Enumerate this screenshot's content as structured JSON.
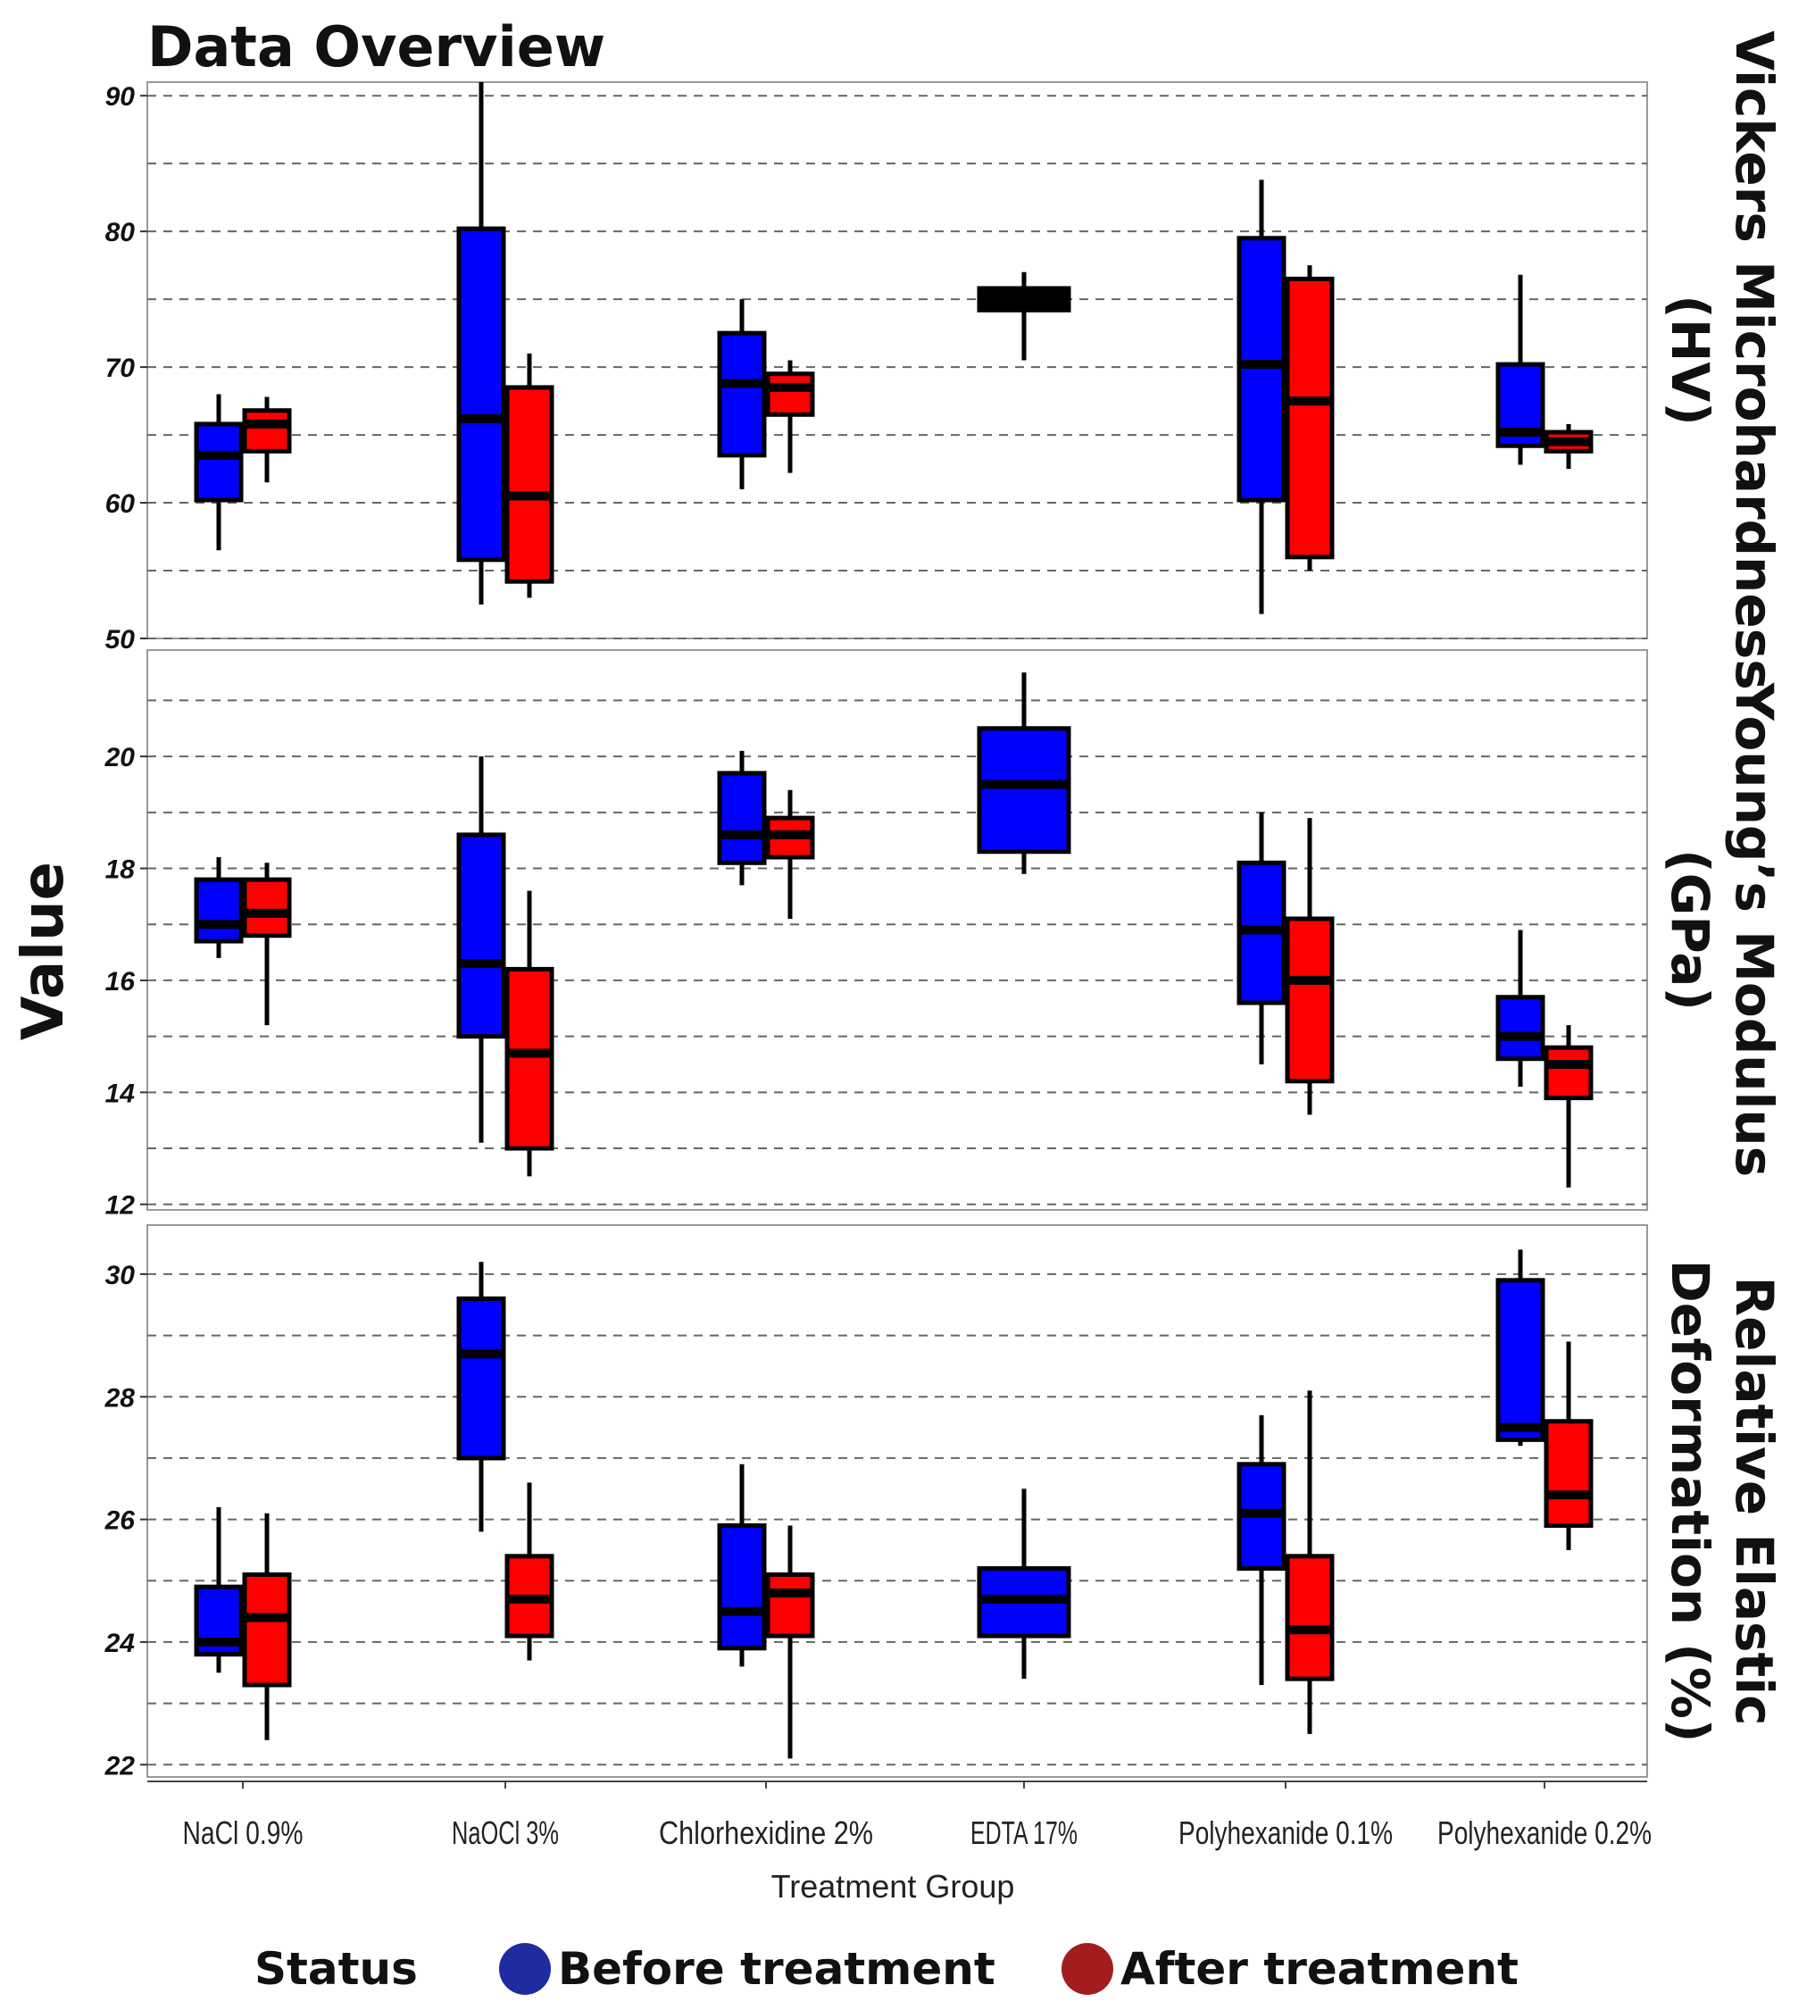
{
  "chart_data": {
    "type": "boxplot",
    "title": "Data Overview",
    "ylabel": "Value",
    "xlabel": "Treatment Group",
    "categories": [
      "NaCl 0.9%",
      "NaOCl 3%",
      "Chlorhexidine 2%",
      "EDTA 17%",
      "Polyhexanide 0.1%",
      "Polyhexanide 0.2%"
    ],
    "legend": {
      "title": "Status",
      "entries": [
        {
          "name": "Before treatment",
          "color": "#1f2b9f"
        },
        {
          "name": "After treatment",
          "color": "#a31d1d"
        }
      ]
    },
    "fill_colors": {
      "Before treatment": "#0000ff",
      "After treatment": "#ff0000"
    },
    "panels": [
      {
        "name": "Vickers Microhardness (HV)",
        "strip_lines": [
          "Vickers Microhardness",
          "(HV)"
        ],
        "ylim": [
          50,
          91
        ],
        "yticks": [
          50,
          60,
          70,
          80,
          90
        ],
        "grid_step": 5,
        "series": [
          {
            "name": "Before treatment",
            "boxes": [
              {
                "cat": "NaCl 0.9%",
                "min": 56.5,
                "q1": 60.2,
                "median": 63.5,
                "q3": 65.8,
                "max": 68.0
              },
              {
                "cat": "NaOCl 3%",
                "min": 52.5,
                "q1": 55.8,
                "median": 66.2,
                "q3": 80.2,
                "max": 91.0
              },
              {
                "cat": "Chlorhexidine 2%",
                "min": 61.0,
                "q1": 63.5,
                "median": 68.8,
                "q3": 72.5,
                "max": 75.0
              },
              {
                "cat": "EDTA 17%",
                "min": 70.5,
                "q1": 74.2,
                "median": 75.0,
                "q3": 75.8,
                "max": 77.0
              },
              {
                "cat": "Polyhexanide 0.1%",
                "min": 51.8,
                "q1": 60.2,
                "median": 70.2,
                "q3": 79.5,
                "max": 83.8
              },
              {
                "cat": "Polyhexanide 0.2%",
                "min": 62.8,
                "q1": 64.2,
                "median": 65.2,
                "q3": 70.2,
                "max": 76.8
              }
            ]
          },
          {
            "name": "After treatment",
            "boxes": [
              {
                "cat": "NaCl 0.9%",
                "min": 61.5,
                "q1": 63.8,
                "median": 65.8,
                "q3": 66.8,
                "max": 67.8
              },
              {
                "cat": "NaOCl 3%",
                "min": 53.0,
                "q1": 54.2,
                "median": 60.5,
                "q3": 68.5,
                "max": 71.0
              },
              {
                "cat": "Chlorhexidine 2%",
                "min": 62.2,
                "q1": 66.5,
                "median": 68.5,
                "q3": 69.5,
                "max": 70.5
              },
              {
                "cat": "EDTA 17%",
                "min": null,
                "q1": null,
                "median": null,
                "q3": null,
                "max": null
              },
              {
                "cat": "Polyhexanide 0.1%",
                "min": 55.0,
                "q1": 56.0,
                "median": 67.5,
                "q3": 76.5,
                "max": 77.5
              },
              {
                "cat": "Polyhexanide 0.2%",
                "min": 62.5,
                "q1": 63.8,
                "median": 64.5,
                "q3": 65.2,
                "max": 65.8
              }
            ]
          }
        ]
      },
      {
        "name": "Young's Modulus (GPa)",
        "strip_lines": [
          "Young’s Modulus",
          "(GPa)"
        ],
        "ylim": [
          11.9,
          21.9
        ],
        "yticks": [
          12,
          14,
          16,
          18,
          20
        ],
        "grid_step": 1,
        "series": [
          {
            "name": "Before treatment",
            "boxes": [
              {
                "cat": "NaCl 0.9%",
                "min": 16.4,
                "q1": 16.7,
                "median": 17.0,
                "q3": 17.8,
                "max": 18.2
              },
              {
                "cat": "NaOCl 3%",
                "min": 13.1,
                "q1": 15.0,
                "median": 16.3,
                "q3": 18.6,
                "max": 20.0
              },
              {
                "cat": "Chlorhexidine 2%",
                "min": 17.7,
                "q1": 18.1,
                "median": 18.6,
                "q3": 19.7,
                "max": 20.1
              },
              {
                "cat": "EDTA 17%",
                "min": 17.9,
                "q1": 18.3,
                "median": 19.5,
                "q3": 20.5,
                "max": 21.5
              },
              {
                "cat": "Polyhexanide 0.1%",
                "min": 14.5,
                "q1": 15.6,
                "median": 16.9,
                "q3": 18.1,
                "max": 19.0
              },
              {
                "cat": "Polyhexanide 0.2%",
                "min": 14.1,
                "q1": 14.6,
                "median": 15.0,
                "q3": 15.7,
                "max": 16.9
              }
            ]
          },
          {
            "name": "After treatment",
            "boxes": [
              {
                "cat": "NaCl 0.9%",
                "min": 15.2,
                "q1": 16.8,
                "median": 17.2,
                "q3": 17.8,
                "max": 18.1
              },
              {
                "cat": "NaOCl 3%",
                "min": 12.5,
                "q1": 13.0,
                "median": 14.7,
                "q3": 16.2,
                "max": 17.6
              },
              {
                "cat": "Chlorhexidine 2%",
                "min": 17.1,
                "q1": 18.2,
                "median": 18.6,
                "q3": 18.9,
                "max": 19.4
              },
              {
                "cat": "EDTA 17%",
                "min": null,
                "q1": null,
                "median": null,
                "q3": null,
                "max": null
              },
              {
                "cat": "Polyhexanide 0.1%",
                "min": 13.6,
                "q1": 14.2,
                "median": 16.0,
                "q3": 17.1,
                "max": 18.9
              },
              {
                "cat": "Polyhexanide 0.2%",
                "min": 12.3,
                "q1": 13.9,
                "median": 14.5,
                "q3": 14.8,
                "max": 15.2
              }
            ]
          }
        ]
      },
      {
        "name": "Relative Elastic Deformation (%)",
        "strip_lines": [
          "Relative Elastic",
          "Deformation (%)"
        ],
        "ylim": [
          21.8,
          30.8
        ],
        "yticks": [
          22,
          24,
          26,
          28,
          30
        ],
        "grid_step": 1,
        "series": [
          {
            "name": "Before treatment",
            "boxes": [
              {
                "cat": "NaCl 0.9%",
                "min": 23.5,
                "q1": 23.8,
                "median": 24.0,
                "q3": 24.9,
                "max": 26.2
              },
              {
                "cat": "NaOCl 3%",
                "min": 25.8,
                "q1": 27.0,
                "median": 28.7,
                "q3": 29.6,
                "max": 30.2
              },
              {
                "cat": "Chlorhexidine 2%",
                "min": 23.6,
                "q1": 23.9,
                "median": 24.5,
                "q3": 25.9,
                "max": 26.9
              },
              {
                "cat": "EDTA 17%",
                "min": 23.4,
                "q1": 24.1,
                "median": 24.7,
                "q3": 25.2,
                "max": 26.5
              },
              {
                "cat": "Polyhexanide 0.1%",
                "min": 23.3,
                "q1": 25.2,
                "median": 26.1,
                "q3": 26.9,
                "max": 27.7
              },
              {
                "cat": "Polyhexanide 0.2%",
                "min": 27.2,
                "q1": 27.3,
                "median": 27.5,
                "q3": 29.9,
                "max": 30.4
              }
            ]
          },
          {
            "name": "After treatment",
            "boxes": [
              {
                "cat": "NaCl 0.9%",
                "min": 22.4,
                "q1": 23.3,
                "median": 24.4,
                "q3": 25.1,
                "max": 26.1
              },
              {
                "cat": "NaOCl 3%",
                "min": 23.7,
                "q1": 24.1,
                "median": 24.7,
                "q3": 25.4,
                "max": 26.6
              },
              {
                "cat": "Chlorhexidine 2%",
                "min": 22.1,
                "q1": 24.1,
                "median": 24.8,
                "q3": 25.1,
                "max": 25.9
              },
              {
                "cat": "EDTA 17%",
                "min": null,
                "q1": null,
                "median": null,
                "q3": null,
                "max": null
              },
              {
                "cat": "Polyhexanide 0.1%",
                "min": 22.5,
                "q1": 23.4,
                "median": 24.2,
                "q3": 25.4,
                "max": 28.1
              },
              {
                "cat": "Polyhexanide 0.2%",
                "min": 25.5,
                "q1": 25.9,
                "median": 26.4,
                "q3": 27.6,
                "max": 28.9
              }
            ]
          }
        ]
      }
    ]
  }
}
